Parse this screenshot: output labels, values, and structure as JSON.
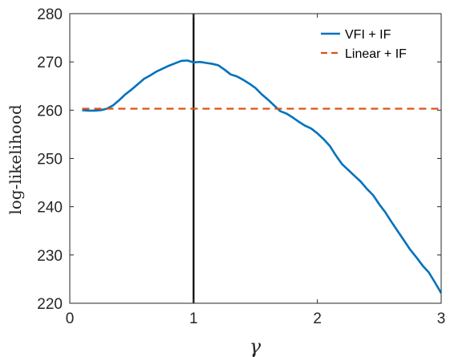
{
  "chart_data": {
    "type": "line",
    "xlabel": "γ",
    "ylabel": "log-likelihood",
    "xlim": [
      0,
      3
    ],
    "ylim": [
      220,
      280
    ],
    "x_ticks": [
      "0",
      "1",
      "2",
      "3"
    ],
    "y_ticks": [
      "220",
      "230",
      "240",
      "250",
      "260",
      "270",
      "280"
    ],
    "grid": false,
    "legend_position": "top-right",
    "vertical_marker_x": 1,
    "series": [
      {
        "name": "VFI + IF",
        "color": "#0072BD",
        "style": "solid",
        "x": [
          0.1,
          0.15,
          0.2,
          0.25,
          0.3,
          0.35,
          0.4,
          0.45,
          0.5,
          0.55,
          0.6,
          0.65,
          0.7,
          0.75,
          0.8,
          0.85,
          0.9,
          0.95,
          1.0,
          1.05,
          1.1,
          1.15,
          1.2,
          1.25,
          1.3,
          1.35,
          1.4,
          1.45,
          1.5,
          1.55,
          1.6,
          1.65,
          1.7,
          1.75,
          1.8,
          1.85,
          1.9,
          1.95,
          2.0,
          2.05,
          2.1,
          2.15,
          2.2,
          2.25,
          2.3,
          2.35,
          2.4,
          2.45,
          2.5,
          2.55,
          2.6,
          2.65,
          2.7,
          2.75,
          2.8,
          2.85,
          2.9,
          2.95,
          3.0
        ],
        "values": [
          260.0,
          259.9,
          259.9,
          260.0,
          260.3,
          261.0,
          262.1,
          263.3,
          264.3,
          265.4,
          266.5,
          267.2,
          268.0,
          268.6,
          269.2,
          269.7,
          270.2,
          270.3,
          269.9,
          270.0,
          269.8,
          269.6,
          269.3,
          268.4,
          267.4,
          267.0,
          266.3,
          265.5,
          264.6,
          263.3,
          262.2,
          261.0,
          259.8,
          259.3,
          258.5,
          257.6,
          256.8,
          256.2,
          255.2,
          254.0,
          252.6,
          250.6,
          248.8,
          247.6,
          246.4,
          245.2,
          243.7,
          242.4,
          240.5,
          238.8,
          236.8,
          234.9,
          233.0,
          231.1,
          229.5,
          227.8,
          226.4,
          224.3,
          222.1
        ]
      },
      {
        "name": "Linear + IF",
        "color": "#D95319",
        "style": "dashed",
        "x": [
          0.1,
          3.0
        ],
        "values": [
          260.3,
          260.3
        ]
      }
    ]
  }
}
